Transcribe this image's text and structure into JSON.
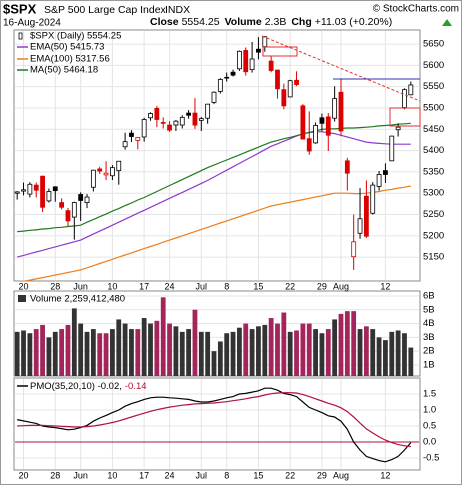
{
  "header": {
    "symbol": "$SPX",
    "name": "S&P 500 Large Cap Index",
    "exchange": "INDX",
    "credit": "© StockCharts.com",
    "date": "16-Aug-2024",
    "quote": [
      {
        "label": "Close",
        "value": "5554.25"
      },
      {
        "label": "Volume",
        "value": "2.3B"
      },
      {
        "label": "Chg",
        "value": "+11.03 (+0.20%)"
      }
    ]
  },
  "chart_data": [
    {
      "type": "candlestick",
      "name": "$SPX (Daily) 5554.25",
      "up_color": "#000000",
      "down_color": "#dd0000",
      "categories": [
        null,
        "20",
        null,
        null,
        null,
        null,
        "28",
        null,
        null,
        null,
        "Jun",
        null,
        null,
        null,
        null,
        "10",
        null,
        null,
        null,
        null,
        "17",
        null,
        null,
        null,
        "24",
        null,
        null,
        null,
        null,
        "Jul",
        null,
        null,
        null,
        "8",
        null,
        null,
        null,
        null,
        "15",
        null,
        null,
        null,
        null,
        "22",
        null,
        null,
        null,
        null,
        "29",
        null,
        null,
        "Aug",
        null,
        null,
        null,
        null,
        null,
        null,
        "12",
        null,
        null,
        null,
        null
      ],
      "open": [
        5300,
        5305,
        5298,
        5319,
        5340,
        5282,
        5315,
        5278,
        5259,
        5244,
        5297,
        5278,
        5314,
        5357,
        5343,
        5341,
        5353,
        5409,
        5441,
        5424,
        5432,
        5477,
        5499,
        5466,
        5460,
        5460,
        5460,
        5488,
        5488,
        5471,
        5476,
        5513,
        5539,
        5572,
        5584,
        5592,
        5635,
        5590,
        5638,
        5644,
        5610,
        5589,
        5543,
        5526,
        5565,
        5505,
        5428,
        5418,
        5477,
        5479,
        5476,
        5537,
        5376,
        5151,
        5206,
        5293,
        5253,
        5316,
        5353,
        5376,
        5449,
        5501,
        5531
      ],
      "high": [
        5305,
        5325,
        5326,
        5325,
        5341,
        5311,
        5316,
        5288,
        5265,
        5280,
        5302,
        5298,
        5355,
        5362,
        5375,
        5366,
        5375,
        5442,
        5448,
        5432,
        5477,
        5490,
        5505,
        5478,
        5469,
        5472,
        5483,
        5495,
        5523,
        5479,
        5509,
        5539,
        5570,
        5583,
        5590,
        5635,
        5642,
        5655,
        5666,
        5669,
        5622,
        5590,
        5557,
        5566,
        5586,
        5509,
        5492,
        5466,
        5487,
        5488,
        5551,
        5567,
        5383,
        5250,
        5312,
        5330,
        5326,
        5352,
        5370,
        5435,
        5464,
        5546,
        5562
      ],
      "low": [
        5285,
        5295,
        5290,
        5290,
        5256,
        5278,
        5280,
        5262,
        5222,
        5191,
        5235,
        5265,
        5304,
        5345,
        5331,
        5331,
        5320,
        5402,
        5420,
        5403,
        5421,
        5470,
        5455,
        5452,
        5444,
        5446,
        5452,
        5475,
        5451,
        5446,
        5463,
        5509,
        5534,
        5562,
        5574,
        5587,
        5576,
        5583,
        5614,
        5632,
        5584,
        5522,
        5497,
        5525,
        5551,
        5427,
        5390,
        5416,
        5445,
        5399,
        5468,
        5434,
        5306,
        5120,
        5193,
        5195,
        5250,
        5306,
        5324,
        5375,
        5433,
        5497,
        5530
      ],
      "close": [
        5303,
        5308,
        5321,
        5307,
        5267,
        5304,
        5306,
        5267,
        5235,
        5278,
        5283,
        5291,
        5354,
        5352,
        5347,
        5360,
        5375,
        5421,
        5433,
        5431,
        5473,
        5487,
        5473,
        5464,
        5448,
        5469,
        5478,
        5483,
        5460,
        5475,
        5509,
        5537,
        5567,
        5572,
        5577,
        5633,
        5585,
        5615,
        5631,
        5667,
        5588,
        5545,
        5505,
        5564,
        5555,
        5427,
        5399,
        5459,
        5464,
        5436,
        5522,
        5446,
        5347,
        5186,
        5240,
        5199,
        5319,
        5344,
        5344,
        5434,
        5455,
        5543,
        5554
      ],
      "series": [
        {
          "name": "EMA(50) 5415.73",
          "color": "#8a3ccf",
          "values": [
            5150,
            5154,
            5158,
            5162,
            5166,
            5170,
            5174,
            5178,
            5182,
            5186,
            5190,
            5197,
            5204,
            5211,
            5218,
            5225,
            5232,
            5239,
            5246,
            5253,
            5260,
            5267,
            5274,
            5281,
            5288,
            5295,
            5302,
            5309,
            5316,
            5323,
            5330,
            5338,
            5346,
            5354,
            5362,
            5370,
            5378,
            5386,
            5394,
            5402,
            5410,
            5416,
            5422,
            5428,
            5434,
            5440,
            5442,
            5444,
            5444,
            5442,
            5440,
            5436,
            5432,
            5428,
            5424,
            5420,
            5418,
            5417,
            5416,
            5415,
            5415,
            5415,
            5415
          ]
        },
        {
          "name": "EMA(100) 5317.56",
          "color": "#f07d1a",
          "values": [
            5090,
            5093,
            5096,
            5099,
            5102,
            5105,
            5108,
            5111,
            5114,
            5117,
            5120,
            5125,
            5130,
            5135,
            5140,
            5145,
            5150,
            5155,
            5160,
            5165,
            5170,
            5175,
            5180,
            5185,
            5190,
            5195,
            5200,
            5205,
            5210,
            5215,
            5220,
            5225,
            5230,
            5235,
            5240,
            5245,
            5250,
            5255,
            5260,
            5265,
            5270,
            5273,
            5276,
            5279,
            5282,
            5285,
            5288,
            5291,
            5294,
            5297,
            5300,
            5300,
            5300,
            5299,
            5299,
            5300,
            5302,
            5304,
            5307,
            5309,
            5312,
            5314,
            5317
          ]
        },
        {
          "name": "MA(50) 5464.18",
          "color": "#1e7a1e",
          "values": [
            5210,
            5211,
            5213,
            5214,
            5216,
            5217,
            5219,
            5220,
            5222,
            5223,
            5225,
            5232,
            5238,
            5245,
            5251,
            5258,
            5264,
            5271,
            5277,
            5284,
            5290,
            5297,
            5304,
            5311,
            5318,
            5325,
            5332,
            5339,
            5346,
            5353,
            5360,
            5366,
            5372,
            5378,
            5384,
            5390,
            5396,
            5402,
            5408,
            5414,
            5420,
            5424,
            5428,
            5431,
            5435,
            5439,
            5443,
            5446,
            5450,
            5451,
            5451,
            5452,
            5453,
            5453,
            5454,
            5455,
            5456,
            5458,
            5459,
            5460,
            5462,
            5463,
            5464
          ]
        }
      ],
      "ylim": [
        5094,
        5683
      ],
      "yticks": [
        5150,
        5200,
        5250,
        5300,
        5350,
        5400,
        5450,
        5500,
        5550,
        5600,
        5650
      ],
      "grid": true
    },
    {
      "type": "bar",
      "legend": "Volume 2,259,412,480",
      "up_color": "#333333",
      "down_color": "#a3255b",
      "values": [
        3400000000,
        3500000000,
        3300000000,
        3600000000,
        3900000000,
        3000000000,
        3400000000,
        3600000000,
        3900000000,
        5100000000,
        4000000000,
        3400000000,
        3600000000,
        3300000000,
        3300000000,
        3600000000,
        4300000000,
        4000000000,
        3600000000,
        3600000000,
        4400000000,
        4000000000,
        4200000000,
        5900000000,
        4000000000,
        3800000000,
        3400000000,
        3600000000,
        5000000000,
        3400000000,
        3400000000,
        2000000000,
        2700000000,
        3300000000,
        3400000000,
        3700000000,
        4000000000,
        3600000000,
        3800000000,
        3900000000,
        4400000000,
        4000000000,
        4800000000,
        3400000000,
        3500000000,
        4000000000,
        4000000000,
        3600000000,
        3300000000,
        3600000000,
        4300000000,
        4700000000,
        4900000000,
        4900000000,
        3600000000,
        3800000000,
        3600000000,
        3000000000,
        2800000000,
        3400000000,
        3500000000,
        3300000000,
        2259412480
      ],
      "ylim": [
        200000000,
        6360000000
      ],
      "yticks": [
        {
          "value": 1000000000,
          "label": "1B"
        },
        {
          "value": 2000000000,
          "label": "2B"
        },
        {
          "value": 3000000000,
          "label": "3B"
        },
        {
          "value": 4000000000,
          "label": "4B"
        },
        {
          "value": 5000000000,
          "label": "5B"
        },
        {
          "value": 6000000000,
          "label": "6B"
        }
      ],
      "grid": true
    },
    {
      "type": "line",
      "legend": [
        "PMO(35,20,10) -0.02,",
        "-0.14"
      ],
      "categories": [
        null,
        "20",
        null,
        null,
        null,
        null,
        "28",
        null,
        null,
        null,
        "Jun",
        null,
        null,
        null,
        null,
        "10",
        null,
        null,
        null,
        null,
        "17",
        null,
        null,
        null,
        "24",
        null,
        null,
        null,
        null,
        "Jul",
        null,
        null,
        null,
        "8",
        null,
        null,
        null,
        null,
        "15",
        null,
        null,
        null,
        null,
        "22",
        null,
        null,
        null,
        null,
        "29",
        null,
        null,
        "Aug",
        null,
        null,
        null,
        null,
        null,
        null,
        "12",
        null,
        null,
        null,
        null
      ],
      "series": [
        {
          "color": "#000000",
          "values": [
            0.7,
            0.66,
            0.62,
            0.58,
            0.5,
            0.47,
            0.45,
            0.42,
            0.38,
            0.4,
            0.45,
            0.52,
            0.65,
            0.75,
            0.83,
            0.92,
            1.0,
            1.12,
            1.2,
            1.26,
            1.33,
            1.38,
            1.4,
            1.4,
            1.38,
            1.37,
            1.35,
            1.33,
            1.28,
            1.25,
            1.25,
            1.28,
            1.33,
            1.38,
            1.42,
            1.5,
            1.52,
            1.56,
            1.6,
            1.68,
            1.68,
            1.62,
            1.52,
            1.48,
            1.42,
            1.25,
            1.08,
            1.0,
            0.92,
            0.82,
            0.78,
            0.65,
            0.4,
            0.0,
            -0.25,
            -0.45,
            -0.52,
            -0.58,
            -0.62,
            -0.55,
            -0.45,
            -0.25,
            -0.02
          ]
        },
        {
          "color": "#b0103a",
          "values": [
            0.5,
            0.51,
            0.52,
            0.52,
            0.52,
            0.51,
            0.5,
            0.49,
            0.48,
            0.47,
            0.47,
            0.48,
            0.5,
            0.53,
            0.57,
            0.61,
            0.66,
            0.72,
            0.78,
            0.84,
            0.9,
            0.96,
            1.01,
            1.05,
            1.09,
            1.12,
            1.15,
            1.17,
            1.19,
            1.2,
            1.21,
            1.22,
            1.24,
            1.26,
            1.29,
            1.32,
            1.35,
            1.39,
            1.42,
            1.47,
            1.51,
            1.53,
            1.54,
            1.54,
            1.53,
            1.48,
            1.42,
            1.35,
            1.28,
            1.21,
            1.15,
            1.07,
            0.95,
            0.78,
            0.59,
            0.41,
            0.28,
            0.16,
            0.06,
            -0.02,
            -0.08,
            -0.12,
            -0.14
          ]
        }
      ],
      "hline": 0,
      "hline_color": "#b0103a",
      "ylim": [
        -0.875,
        2.0
      ],
      "yticks": [
        -0.5,
        {
          "value": 0,
          "label": "0.0"
        },
        0.5,
        {
          "value": 1,
          "label": "1.0"
        },
        1.5
      ],
      "grid": true
    }
  ]
}
